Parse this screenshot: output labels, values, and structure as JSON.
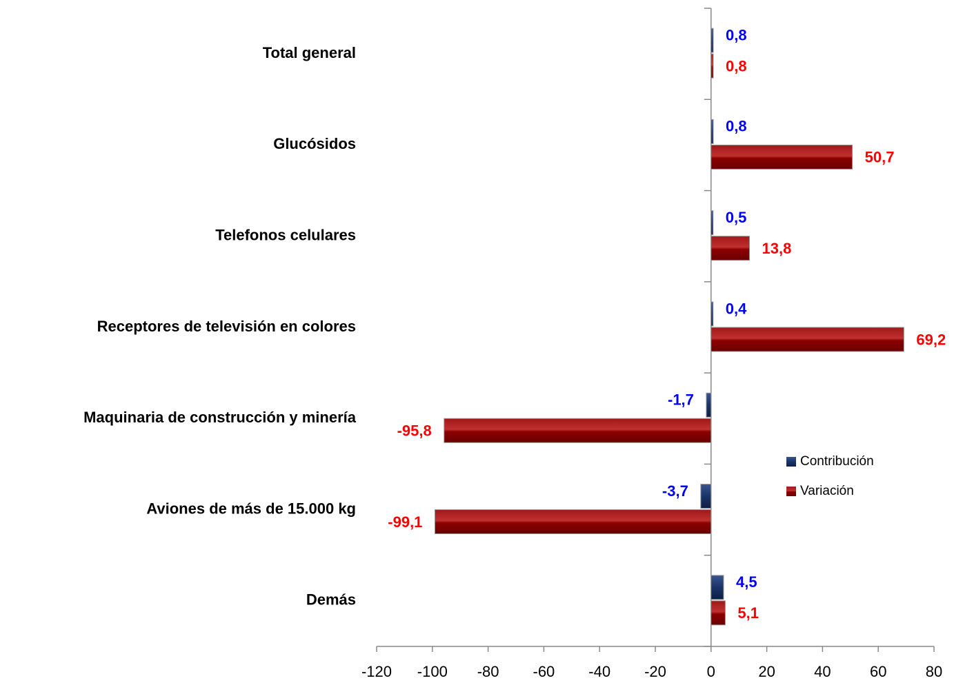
{
  "chart_data": {
    "type": "bar",
    "orientation": "horizontal",
    "categories": [
      "Total general",
      "Glucósidos",
      "Telefonos celulares",
      "Receptores de televisión en colores",
      "Maquinaria de construcción y minería",
      "Aviones de más de 15.000 kg",
      "Demás"
    ],
    "series": [
      {
        "name": "Contribución",
        "color": "#1a3468",
        "label_color": "#0000ff",
        "values": [
          0.8,
          0.8,
          0.5,
          0.4,
          -1.7,
          -3.7,
          4.5
        ],
        "value_labels": [
          "0,8",
          "0,8",
          "0,5",
          "0,4",
          "-1,7",
          "-3,7",
          "4,5"
        ]
      },
      {
        "name": "Variación",
        "color": "#8b0000",
        "label_color": "#ff0000",
        "values": [
          0.8,
          50.7,
          13.8,
          69.2,
          -95.8,
          -99.1,
          5.1
        ],
        "value_labels": [
          "0,8",
          "50,7",
          "13,8",
          "69,2",
          "-95,8",
          "-99,1",
          "5,1"
        ]
      }
    ],
    "xlim": [
      -120,
      80
    ],
    "xticks": [
      -120,
      -100,
      -80,
      -60,
      -40,
      -20,
      0,
      20,
      40,
      60,
      80
    ],
    "legend": "right"
  }
}
